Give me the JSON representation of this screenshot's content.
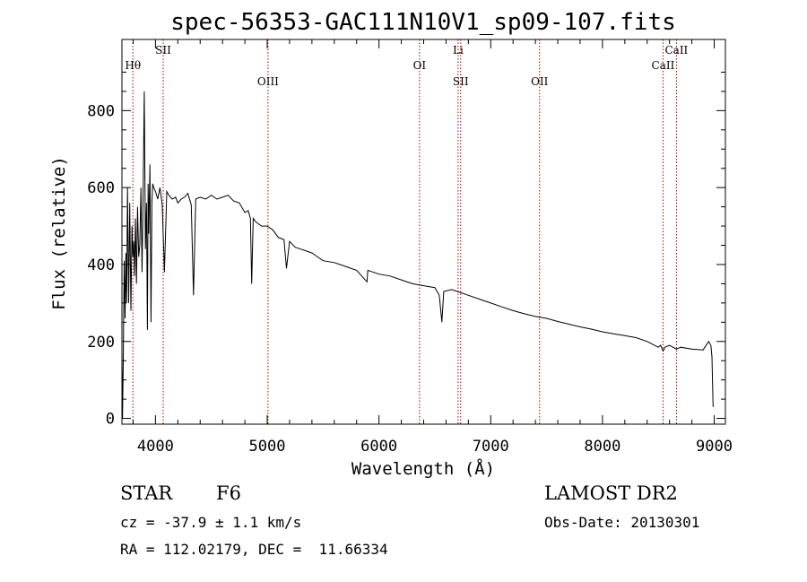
{
  "chart_data": {
    "type": "line",
    "title": "spec-56353-GAC111N10V1_sp09-107.fits",
    "xlabel": "Wavelength (Å)",
    "ylabel": "Flux (relative)",
    "xlim": [
      3700,
      9100
    ],
    "ylim": [
      -15,
      985
    ],
    "x_ticks": [
      4000,
      5000,
      6000,
      7000,
      8000,
      9000
    ],
    "y_ticks": [
      0,
      200,
      400,
      600,
      800
    ],
    "grid": false,
    "series": [
      {
        "x": [
          3700,
          3705,
          3712,
          3720,
          3728,
          3735,
          3742,
          3750,
          3760,
          3770,
          3780,
          3790,
          3798,
          3805,
          3812,
          3820,
          3830,
          3840,
          3850,
          3860,
          3870,
          3880,
          3890,
          3900,
          3910,
          3920,
          3928,
          3934,
          3940,
          3950,
          3960,
          3968,
          3975,
          3985,
          4000,
          4020,
          4040,
          4060,
          4080,
          4101,
          4120,
          4150,
          4180,
          4200,
          4230,
          4260,
          4290,
          4320,
          4340,
          4360,
          4400,
          4450,
          4500,
          4550,
          4600,
          4650,
          4700,
          4750,
          4800,
          4830,
          4850,
          4861,
          4875,
          4900,
          4950,
          5000,
          5050,
          5100,
          5150,
          5172,
          5200,
          5250,
          5300,
          5350,
          5400,
          5450,
          5500,
          5600,
          5700,
          5800,
          5893,
          5900,
          6000,
          6100,
          6200,
          6300,
          6400,
          6500,
          6540,
          6563,
          6580,
          6650,
          6700,
          6800,
          6900,
          7000,
          7100,
          7200,
          7300,
          7400,
          7500,
          7600,
          7700,
          7800,
          7900,
          8000,
          8100,
          8200,
          8300,
          8400,
          8498,
          8520,
          8542,
          8560,
          8600,
          8662,
          8700,
          8800,
          8900,
          8950,
          8970,
          8980,
          8985,
          8990
        ],
        "y": [
          170,
          0,
          150,
          410,
          260,
          430,
          300,
          600,
          300,
          560,
          280,
          500,
          420,
          460,
          370,
          520,
          350,
          550,
          420,
          450,
          600,
          380,
          600,
          850,
          440,
          560,
          230,
          610,
          480,
          660,
          250,
          560,
          610,
          600,
          590,
          570,
          600,
          555,
          380,
          590,
          580,
          570,
          575,
          560,
          570,
          575,
          585,
          555,
          320,
          570,
          575,
          570,
          580,
          570,
          575,
          580,
          565,
          560,
          535,
          540,
          520,
          350,
          520,
          510,
          500,
          500,
          490,
          470,
          465,
          390,
          460,
          445,
          440,
          435,
          430,
          420,
          410,
          405,
          395,
          385,
          355,
          385,
          375,
          370,
          360,
          350,
          345,
          340,
          320,
          250,
          330,
          335,
          330,
          320,
          310,
          300,
          290,
          280,
          272,
          265,
          260,
          252,
          245,
          238,
          232,
          225,
          220,
          215,
          210,
          200,
          185,
          190,
          175,
          185,
          190,
          180,
          185,
          180,
          178,
          200,
          190,
          160,
          90,
          30
        ]
      }
    ],
    "annotations": [
      {
        "label": "Hθ",
        "x": 3798,
        "row": 2
      },
      {
        "label": "SII",
        "x": 4069,
        "row": 1
      },
      {
        "label": "OIII",
        "x": 5007,
        "row": 3
      },
      {
        "label": "OI",
        "x": 6363,
        "row": 2
      },
      {
        "label": "Li",
        "x": 6708,
        "row": 1
      },
      {
        "label": "SII",
        "x": 6731,
        "row": 3
      },
      {
        "label": "OII",
        "x": 7437,
        "row": 3
      },
      {
        "label": "CaII",
        "x": 8542,
        "row": 2
      },
      {
        "label": "CaII",
        "x": 8662,
        "row": 1
      }
    ],
    "annotation_color": "#b00000"
  },
  "info": {
    "class": "STAR",
    "subclass": "F6",
    "survey": "LAMOST DR2",
    "cz": "cz = -37.9 ± 1.1 km/s",
    "obs_date": "Obs-Date: 20130301",
    "coords": "RA = 112.02179, DEC =  11.66334"
  }
}
